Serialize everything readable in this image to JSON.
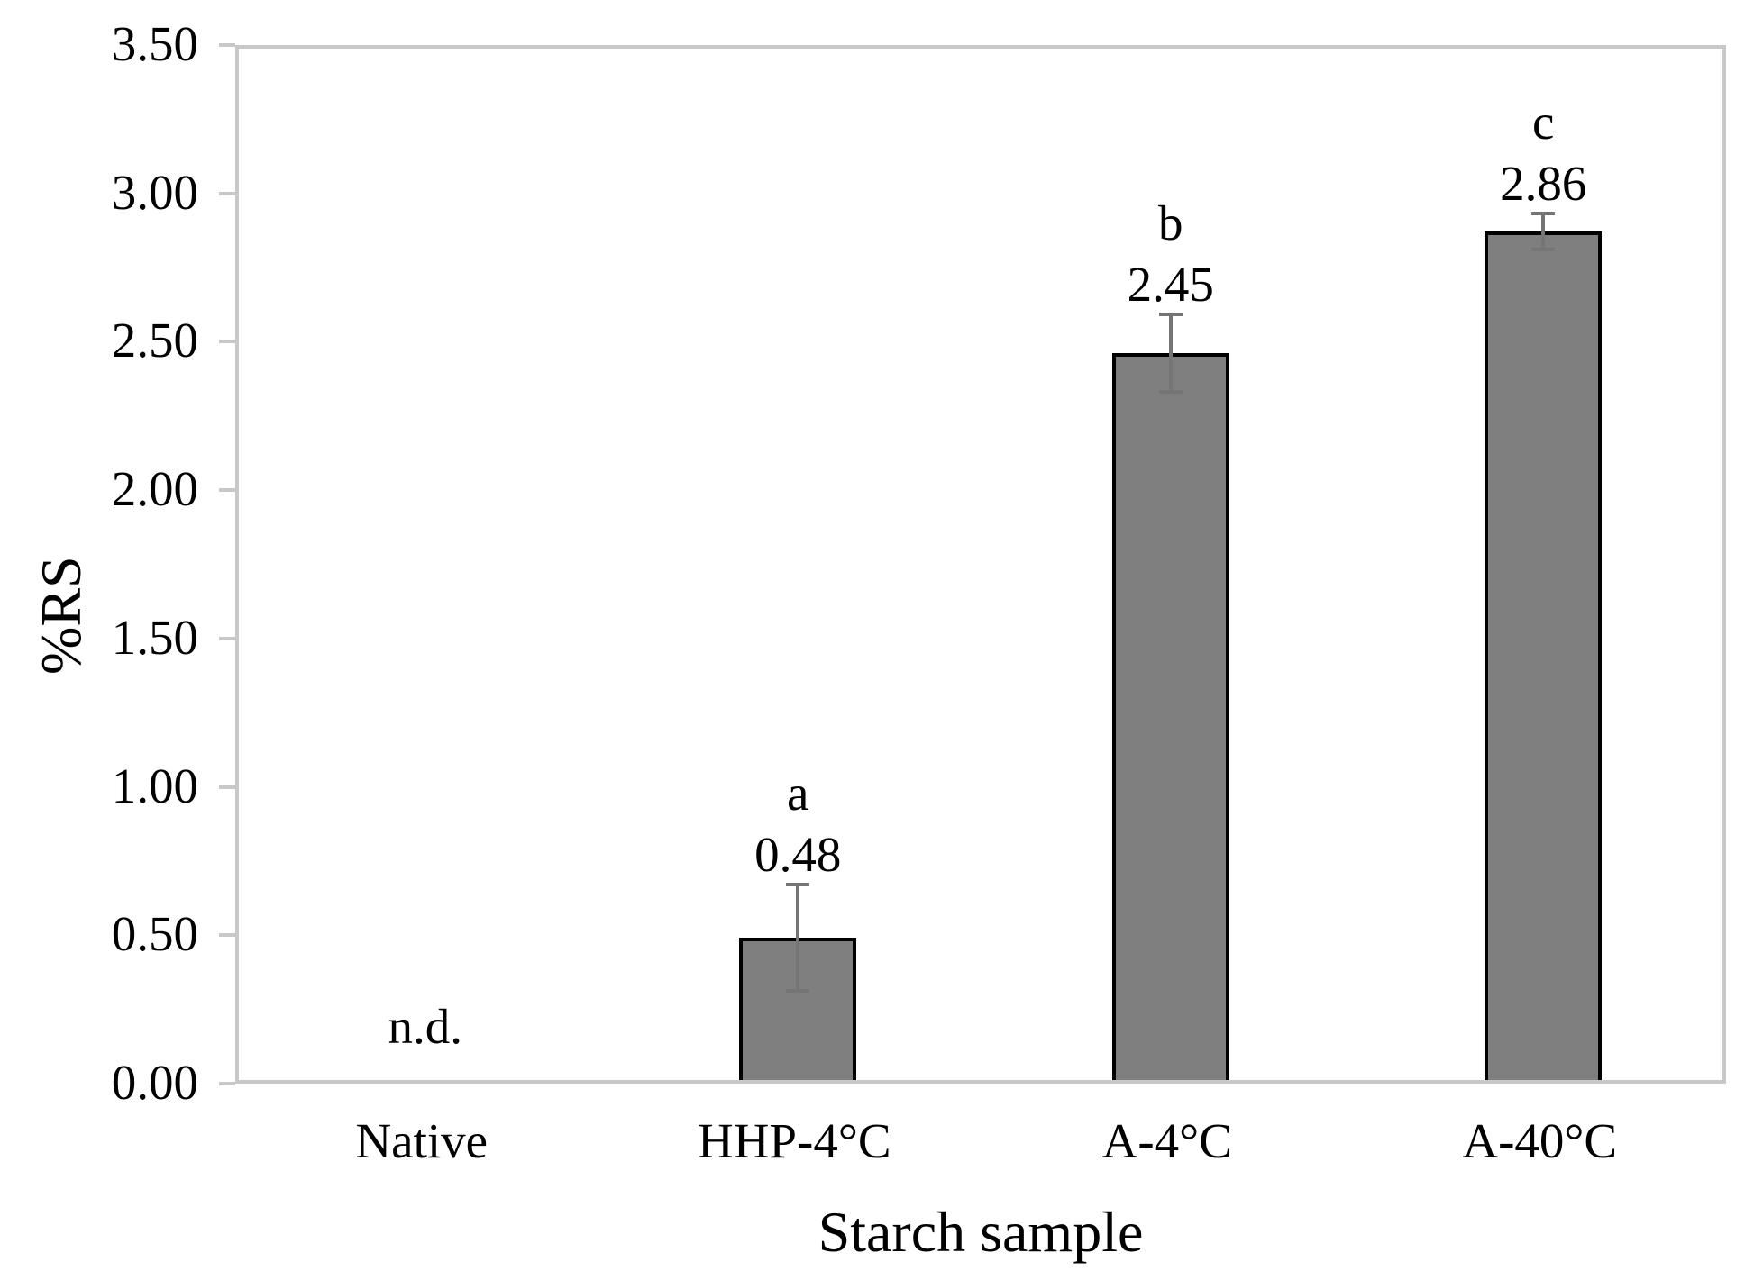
{
  "chart_data": {
    "type": "bar",
    "title": "",
    "xlabel": "Starch sample",
    "ylabel": "%RS",
    "categories": [
      "Native",
      "HHP-4°C",
      "A-4°C",
      "A-40°C"
    ],
    "values": [
      null,
      0.48,
      2.45,
      2.86
    ],
    "value_labels": [
      null,
      "0.48",
      "2.45",
      "2.86"
    ],
    "significance_letters": [
      null,
      "a",
      "b",
      "c"
    ],
    "errors": [
      null,
      0.18,
      0.13,
      0.06
    ],
    "not_detected_label": "n.d.",
    "ylim": [
      0,
      3.5
    ],
    "ytick_values": [
      0.0,
      0.5,
      1.0,
      1.5,
      2.0,
      2.5,
      3.0,
      3.5
    ],
    "ytick_labels": [
      "0.00",
      "0.50",
      "1.00",
      "1.50",
      "2.00",
      "2.50",
      "3.00",
      "3.50"
    ],
    "grid": false,
    "legend_position": "none",
    "colors": {
      "bar_fill": "#7f7f7f",
      "bar_border": "#000000",
      "axis_frame": "#c8c8c8",
      "error_bar": "#757575",
      "text": "#000000",
      "background": "#ffffff"
    }
  }
}
